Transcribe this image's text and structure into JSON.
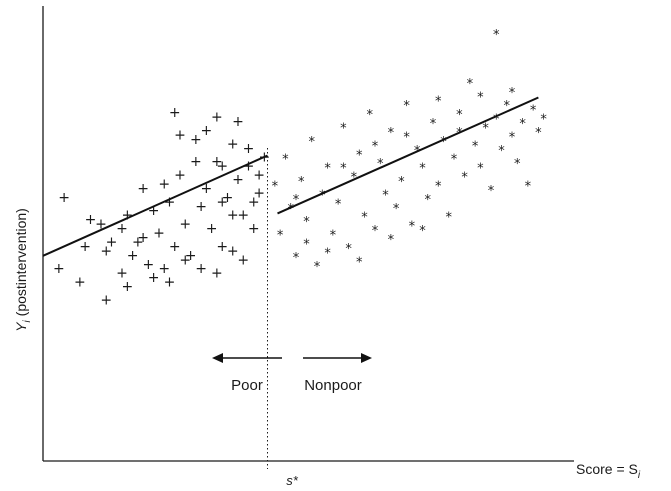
{
  "chart_data": {
    "type": "scatter",
    "title": "",
    "xlabel": "Score = S",
    "xlabel_subscript": "i",
    "ylabel_var": "Y",
    "ylabel_subscript": "i",
    "ylabel_rest": " (postintervention)",
    "xlim": [
      0,
      100
    ],
    "ylim": [
      0,
      100
    ],
    "axis_ticks": "none",
    "grid": false,
    "cutoff": {
      "label": "s*",
      "x": 42.6,
      "style": "dotted"
    },
    "annotations": [
      {
        "text": "Poor",
        "arrow": "left"
      },
      {
        "text": "Nonpoor",
        "arrow": "right"
      }
    ],
    "series": [
      {
        "marker": "+",
        "fit": {
          "x": [
            0,
            42.6
          ],
          "y": [
            46.0,
            68.5
          ]
        },
        "points": [
          [
            3,
            43
          ],
          [
            4,
            59
          ],
          [
            7,
            40
          ],
          [
            9,
            54
          ],
          [
            12,
            47
          ],
          [
            13,
            49
          ],
          [
            15,
            42
          ],
          [
            16,
            55
          ],
          [
            18,
            49
          ],
          [
            19,
            61
          ],
          [
            20,
            44
          ],
          [
            21,
            56
          ],
          [
            22,
            51
          ],
          [
            23,
            43
          ],
          [
            24,
            58
          ],
          [
            25,
            48
          ],
          [
            26,
            64
          ],
          [
            27,
            53
          ],
          [
            28,
            46
          ],
          [
            29,
            72
          ],
          [
            30,
            57
          ],
          [
            31,
            61
          ],
          [
            32,
            52
          ],
          [
            33,
            77
          ],
          [
            33,
            67
          ],
          [
            34,
            48
          ],
          [
            35,
            59
          ],
          [
            36,
            71
          ],
          [
            37,
            63
          ],
          [
            38,
            55
          ],
          [
            39,
            70
          ],
          [
            40,
            52
          ],
          [
            41,
            64
          ],
          [
            42,
            68
          ],
          [
            12,
            36
          ],
          [
            16,
            39
          ],
          [
            21,
            41
          ],
          [
            24,
            40
          ],
          [
            27,
            45
          ],
          [
            30,
            43
          ],
          [
            33,
            42
          ],
          [
            36,
            47
          ],
          [
            38,
            45
          ],
          [
            40,
            58
          ],
          [
            26,
            73
          ],
          [
            29,
            67
          ],
          [
            31,
            74
          ],
          [
            34,
            66
          ],
          [
            37,
            76
          ],
          [
            39,
            66
          ],
          [
            23,
            62
          ],
          [
            19,
            50
          ],
          [
            15,
            52
          ],
          [
            17,
            46
          ],
          [
            11,
            53
          ],
          [
            8,
            48
          ],
          [
            25,
            78
          ],
          [
            34,
            58
          ],
          [
            36,
            55
          ],
          [
            41,
            60
          ]
        ]
      },
      {
        "marker": "*",
        "fit": {
          "x": [
            44.5,
            94.0
          ],
          "y": [
            55.5,
            81.5
          ]
        },
        "points": [
          [
            44,
            62
          ],
          [
            45,
            51
          ],
          [
            46,
            68
          ],
          [
            47,
            57
          ],
          [
            48,
            46
          ],
          [
            49,
            63
          ],
          [
            50,
            54
          ],
          [
            51,
            72
          ],
          [
            52,
            44
          ],
          [
            53,
            60
          ],
          [
            54,
            66
          ],
          [
            55,
            51
          ],
          [
            56,
            58
          ],
          [
            57,
            75
          ],
          [
            58,
            48
          ],
          [
            59,
            64
          ],
          [
            60,
            69
          ],
          [
            61,
            55
          ],
          [
            62,
            78
          ],
          [
            63,
            52
          ],
          [
            64,
            67
          ],
          [
            65,
            60
          ],
          [
            66,
            74
          ],
          [
            67,
            57
          ],
          [
            68,
            63
          ],
          [
            69,
            80
          ],
          [
            70,
            53
          ],
          [
            71,
            70
          ],
          [
            72,
            66
          ],
          [
            73,
            59
          ],
          [
            74,
            76
          ],
          [
            75,
            62
          ],
          [
            76,
            72
          ],
          [
            77,
            55
          ],
          [
            78,
            68
          ],
          [
            79,
            78
          ],
          [
            80,
            64
          ],
          [
            81,
            85
          ],
          [
            82,
            71
          ],
          [
            83,
            66
          ],
          [
            84,
            75
          ],
          [
            85,
            61
          ],
          [
            86,
            77
          ],
          [
            87,
            70
          ],
          [
            88,
            80
          ],
          [
            89,
            73
          ],
          [
            90,
            67
          ],
          [
            91,
            76
          ],
          [
            92,
            62
          ],
          [
            93,
            79
          ],
          [
            94,
            74
          ],
          [
            95,
            77
          ],
          [
            86,
            96
          ],
          [
            50,
            49
          ],
          [
            54,
            47
          ],
          [
            60,
            45
          ],
          [
            66,
            50
          ],
          [
            72,
            52
          ],
          [
            48,
            59
          ],
          [
            57,
            66
          ],
          [
            63,
            71
          ],
          [
            69,
            73
          ],
          [
            75,
            81
          ],
          [
            79,
            74
          ],
          [
            83,
            82
          ],
          [
            89,
            83
          ]
        ]
      }
    ]
  }
}
